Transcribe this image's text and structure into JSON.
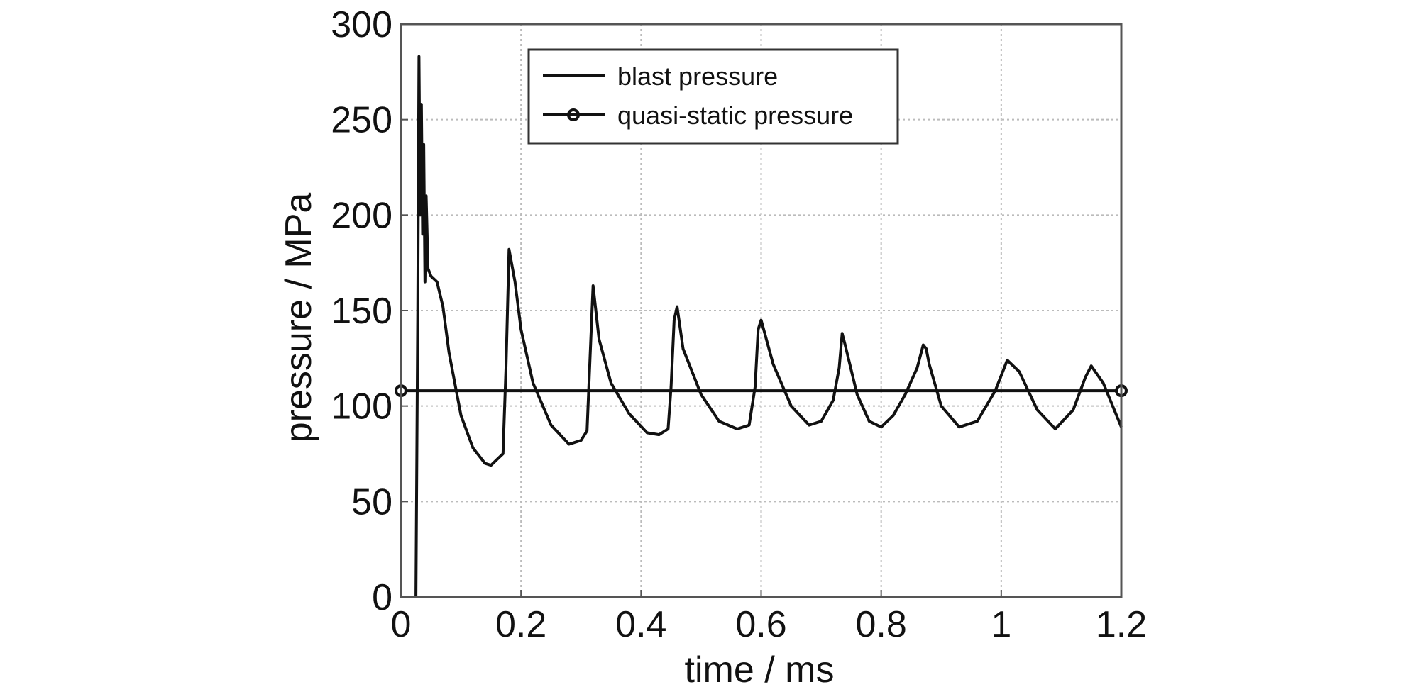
{
  "chart_data": {
    "type": "line",
    "title": "",
    "xlabel": "time / ms",
    "ylabel": "pressure / MPa",
    "xlim": [
      0,
      1.2
    ],
    "ylim": [
      0,
      300
    ],
    "xticks": [
      0,
      0.2,
      0.4,
      0.6,
      0.8,
      1,
      1.2
    ],
    "xtick_labels": [
      "0",
      "0.2",
      "0.4",
      "0.6",
      "0.8",
      "1",
      "1.2"
    ],
    "yticks": [
      0,
      50,
      100,
      150,
      200,
      250,
      300
    ],
    "ytick_labels": [
      "0",
      "50",
      "100",
      "150",
      "200",
      "250",
      "300"
    ],
    "grid": true,
    "legend_position": "top-center",
    "series": [
      {
        "name": "blast pressure",
        "color": "#111111",
        "marker": "none",
        "x": [
          0,
          0.025,
          0.028,
          0.03,
          0.032,
          0.034,
          0.036,
          0.038,
          0.04,
          0.042,
          0.045,
          0.05,
          0.06,
          0.07,
          0.08,
          0.1,
          0.12,
          0.14,
          0.15,
          0.16,
          0.17,
          0.175,
          0.18,
          0.19,
          0.2,
          0.22,
          0.25,
          0.28,
          0.3,
          0.31,
          0.315,
          0.32,
          0.33,
          0.35,
          0.38,
          0.41,
          0.43,
          0.445,
          0.45,
          0.455,
          0.46,
          0.47,
          0.5,
          0.53,
          0.56,
          0.58,
          0.59,
          0.595,
          0.6,
          0.62,
          0.65,
          0.68,
          0.7,
          0.72,
          0.73,
          0.735,
          0.74,
          0.76,
          0.78,
          0.8,
          0.82,
          0.84,
          0.86,
          0.87,
          0.875,
          0.88,
          0.9,
          0.93,
          0.96,
          0.99,
          1.01,
          1.03,
          1.06,
          1.09,
          1.12,
          1.14,
          1.15,
          1.17,
          1.2
        ],
        "y": [
          0,
          0,
          150,
          283,
          200,
          258,
          190,
          237,
          165,
          210,
          172,
          168,
          165,
          152,
          128,
          95,
          78,
          70,
          69,
          72,
          75,
          120,
          182,
          165,
          140,
          112,
          90,
          80,
          82,
          87,
          125,
          163,
          135,
          112,
          96,
          86,
          85,
          88,
          110,
          145,
          152,
          130,
          106,
          92,
          88,
          90,
          110,
          140,
          145,
          122,
          100,
          90,
          92,
          103,
          120,
          138,
          132,
          106,
          92,
          89,
          95,
          106,
          120,
          132,
          130,
          122,
          100,
          89,
          92,
          108,
          124,
          118,
          98,
          88,
          98,
          115,
          121,
          112,
          89
        ]
      },
      {
        "name": "quasi-static pressure",
        "color": "#111111",
        "marker": "circle",
        "x": [
          0,
          1.2
        ],
        "y": [
          108,
          108
        ]
      }
    ]
  }
}
